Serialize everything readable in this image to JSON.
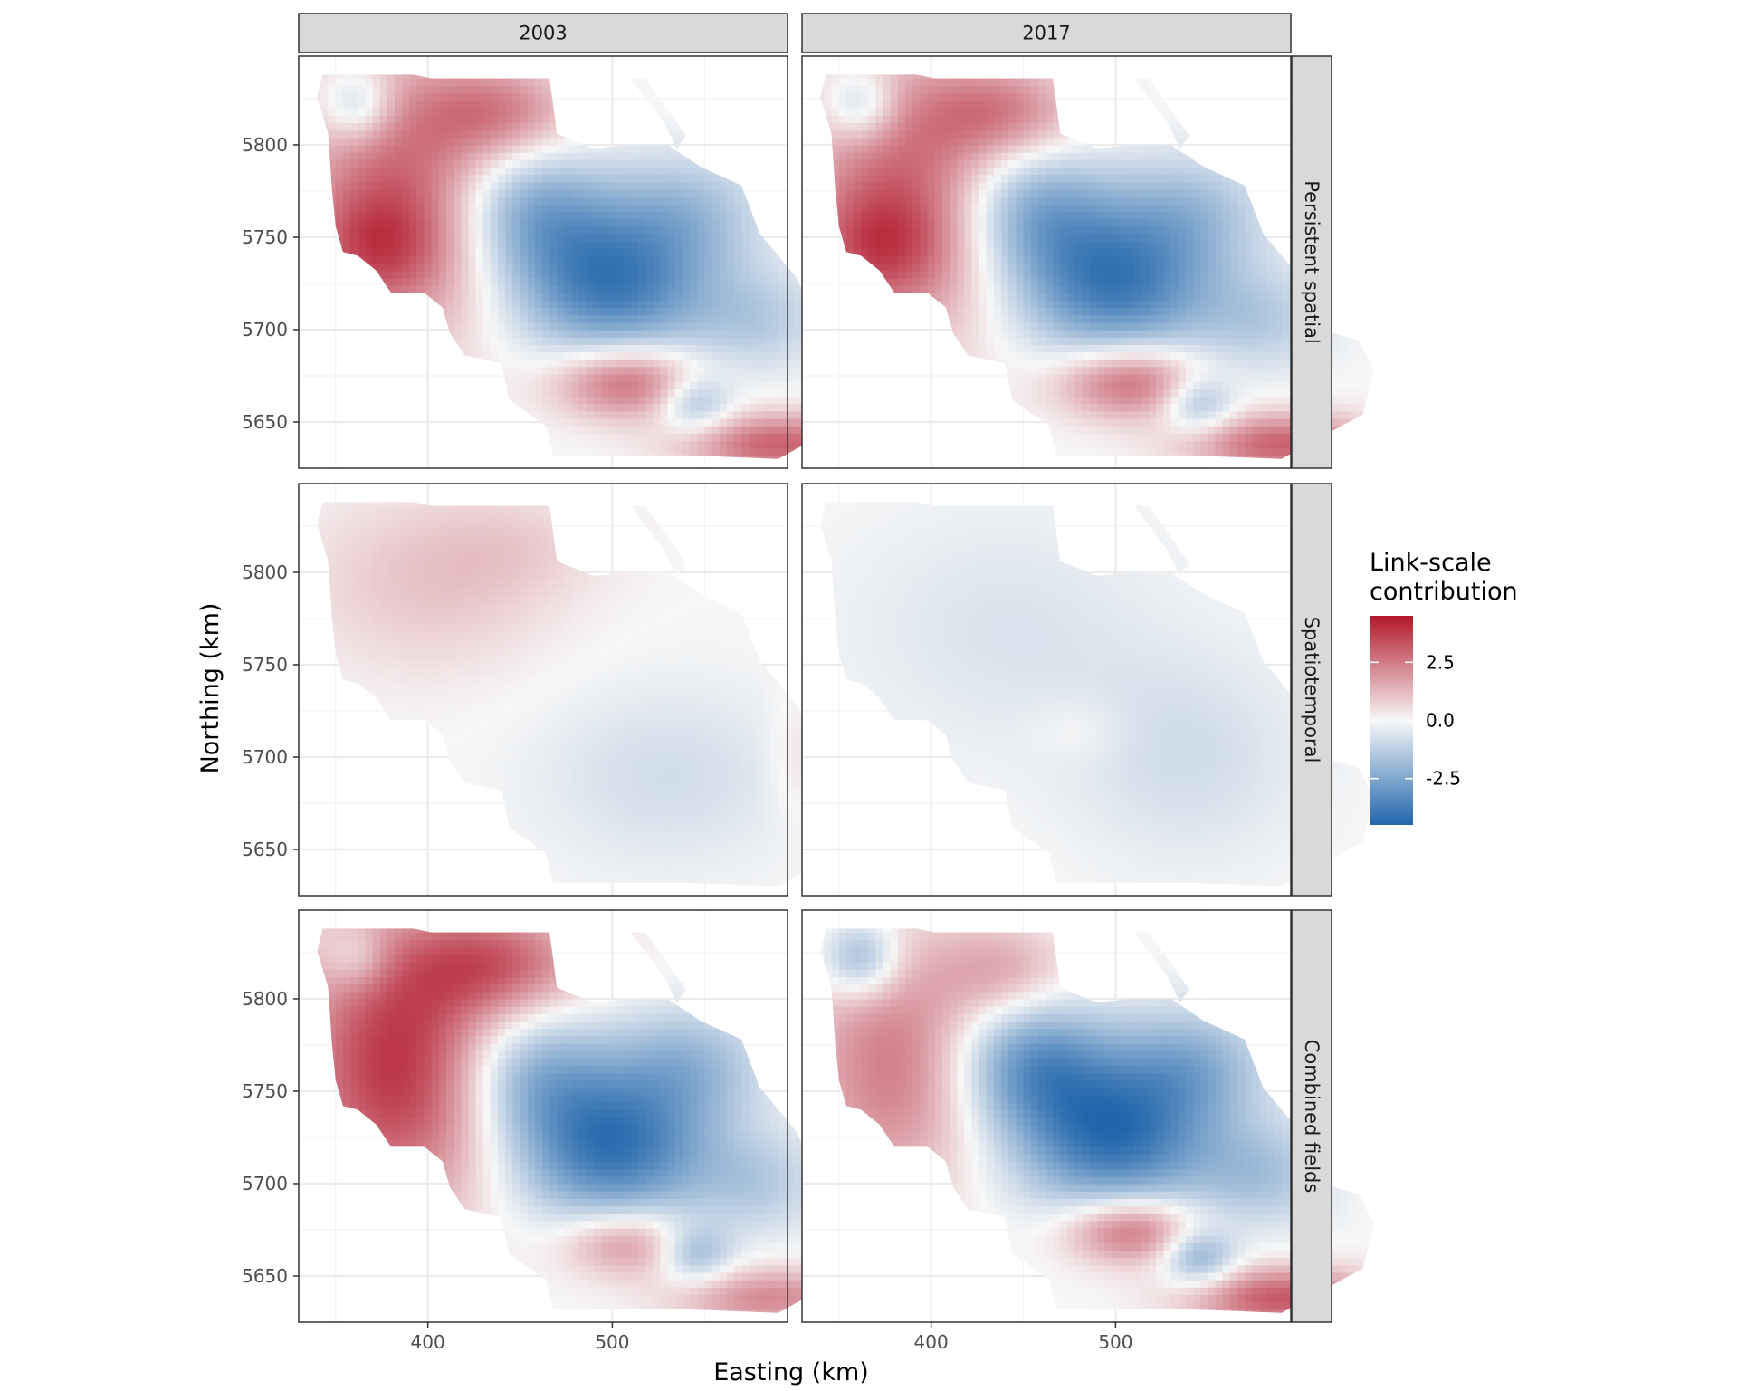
{
  "chart_data": {
    "type": "heatmap",
    "title": "",
    "xlabel": "Easting (km)",
    "ylabel": "Northing (km)",
    "x_ticks": [
      400,
      500
    ],
    "y_ticks": [
      5650,
      5700,
      5750,
      5800
    ],
    "x_ticks_text": [
      "400",
      "500"
    ],
    "y_ticks_text": [
      "5650",
      "5700",
      "5750",
      "5800"
    ],
    "xlim": [
      330,
      595
    ],
    "ylim": [
      5625,
      5848
    ],
    "columns": [
      "2003",
      "2017"
    ],
    "rows": [
      "Persistent spatial",
      "Spatiotemporal",
      "Combined fields"
    ],
    "grid": true,
    "legend": {
      "title_lines": [
        "Link-scale",
        "contribution"
      ],
      "position": "right",
      "range": [
        -4.5,
        4.5
      ],
      "ticks": [
        2.5,
        0.0,
        -2.5
      ],
      "ticks_text": [
        "2.5",
        "0.0",
        "-2.5"
      ],
      "colors": {
        "low": "#2166ac",
        "mid": "#f7f7f7",
        "high": "#b2182b"
      }
    },
    "domain_outline": [
      [
        343,
        5838
      ],
      [
        392,
        5838
      ],
      [
        402,
        5836
      ],
      [
        466,
        5836
      ],
      [
        470,
        5806
      ],
      [
        490,
        5798
      ],
      [
        508,
        5800
      ],
      [
        530,
        5800
      ],
      [
        548,
        5788
      ],
      [
        570,
        5778
      ],
      [
        580,
        5752
      ],
      [
        600,
        5728
      ],
      [
        612,
        5700
      ],
      [
        632,
        5694
      ],
      [
        640,
        5678
      ],
      [
        634,
        5654
      ],
      [
        608,
        5640
      ],
      [
        590,
        5630
      ],
      [
        540,
        5632
      ],
      [
        468,
        5632
      ],
      [
        464,
        5648
      ],
      [
        444,
        5662
      ],
      [
        440,
        5682
      ],
      [
        420,
        5686
      ],
      [
        412,
        5698
      ],
      [
        408,
        5712
      ],
      [
        398,
        5720
      ],
      [
        380,
        5720
      ],
      [
        372,
        5732
      ],
      [
        362,
        5740
      ],
      [
        354,
        5742
      ],
      [
        350,
        5756
      ],
      [
        348,
        5776
      ],
      [
        346,
        5806
      ],
      [
        340,
        5826
      ]
    ],
    "coastal_strip": [
      [
        510,
        5836
      ],
      [
        518,
        5836
      ],
      [
        540,
        5805
      ],
      [
        535,
        5798
      ],
      [
        528,
        5812
      ]
    ],
    "panels": [
      {
        "row": "Persistent spatial",
        "column": "2003",
        "features": [
          {
            "x": 385,
            "y": 5770,
            "value": 3.0,
            "sx": 40,
            "sy": 55
          },
          {
            "x": 370,
            "y": 5745,
            "value": 1.5,
            "sx": 25,
            "sy": 20
          },
          {
            "x": 440,
            "y": 5818,
            "value": 2.0,
            "sx": 30,
            "sy": 18
          },
          {
            "x": 362,
            "y": 5822,
            "value": -2.0,
            "sx": 14,
            "sy": 14
          },
          {
            "x": 455,
            "y": 5765,
            "value": -2.5,
            "sx": 30,
            "sy": 25
          },
          {
            "x": 500,
            "y": 5725,
            "value": -3.8,
            "sx": 38,
            "sy": 28
          },
          {
            "x": 540,
            "y": 5765,
            "value": -1.5,
            "sx": 30,
            "sy": 22
          },
          {
            "x": 580,
            "y": 5705,
            "value": -1.2,
            "sx": 25,
            "sy": 20
          },
          {
            "x": 508,
            "y": 5672,
            "value": 3.0,
            "sx": 28,
            "sy": 14
          },
          {
            "x": 545,
            "y": 5660,
            "value": -2.0,
            "sx": 14,
            "sy": 11
          },
          {
            "x": 590,
            "y": 5638,
            "value": 3.0,
            "sx": 35,
            "sy": 12
          }
        ]
      },
      {
        "row": "Persistent spatial",
        "column": "2017",
        "features": [
          {
            "x": 385,
            "y": 5770,
            "value": 3.0,
            "sx": 40,
            "sy": 55
          },
          {
            "x": 370,
            "y": 5745,
            "value": 1.5,
            "sx": 25,
            "sy": 20
          },
          {
            "x": 440,
            "y": 5818,
            "value": 2.0,
            "sx": 30,
            "sy": 18
          },
          {
            "x": 362,
            "y": 5822,
            "value": -2.0,
            "sx": 14,
            "sy": 14
          },
          {
            "x": 455,
            "y": 5765,
            "value": -2.5,
            "sx": 30,
            "sy": 25
          },
          {
            "x": 500,
            "y": 5725,
            "value": -3.8,
            "sx": 38,
            "sy": 28
          },
          {
            "x": 540,
            "y": 5765,
            "value": -1.5,
            "sx": 30,
            "sy": 22
          },
          {
            "x": 580,
            "y": 5705,
            "value": -1.2,
            "sx": 25,
            "sy": 20
          },
          {
            "x": 508,
            "y": 5672,
            "value": 3.0,
            "sx": 28,
            "sy": 14
          },
          {
            "x": 545,
            "y": 5660,
            "value": -2.0,
            "sx": 14,
            "sy": 11
          },
          {
            "x": 590,
            "y": 5638,
            "value": 3.0,
            "sx": 35,
            "sy": 12
          }
        ]
      },
      {
        "row": "Spatiotemporal",
        "column": "2003",
        "features": [
          {
            "x": 400,
            "y": 5795,
            "value": 1.0,
            "sx": 50,
            "sy": 35
          },
          {
            "x": 450,
            "y": 5815,
            "value": 0.5,
            "sx": 35,
            "sy": 20
          },
          {
            "x": 530,
            "y": 5690,
            "value": -0.8,
            "sx": 50,
            "sy": 35
          },
          {
            "x": 600,
            "y": 5700,
            "value": 0.6,
            "sx": 10,
            "sy": 22
          }
        ]
      },
      {
        "row": "Spatiotemporal",
        "column": "2017",
        "features": [
          {
            "x": 440,
            "y": 5770,
            "value": -0.6,
            "sx": 60,
            "sy": 45
          },
          {
            "x": 540,
            "y": 5700,
            "value": -0.8,
            "sx": 45,
            "sy": 40
          },
          {
            "x": 480,
            "y": 5715,
            "value": 0.4,
            "sx": 18,
            "sy": 12
          }
        ]
      },
      {
        "row": "Combined fields",
        "column": "2003",
        "features": [
          {
            "x": 385,
            "y": 5765,
            "value": 4.0,
            "sx": 40,
            "sy": 55
          },
          {
            "x": 440,
            "y": 5820,
            "value": 2.5,
            "sx": 35,
            "sy": 20
          },
          {
            "x": 362,
            "y": 5822,
            "value": -1.2,
            "sx": 12,
            "sy": 12
          },
          {
            "x": 455,
            "y": 5760,
            "value": -2.3,
            "sx": 30,
            "sy": 25
          },
          {
            "x": 500,
            "y": 5720,
            "value": -4.0,
            "sx": 38,
            "sy": 28
          },
          {
            "x": 540,
            "y": 5765,
            "value": -1.8,
            "sx": 30,
            "sy": 22
          },
          {
            "x": 580,
            "y": 5700,
            "value": -1.2,
            "sx": 25,
            "sy": 20
          },
          {
            "x": 508,
            "y": 5668,
            "value": 2.2,
            "sx": 25,
            "sy": 13
          },
          {
            "x": 545,
            "y": 5662,
            "value": -2.0,
            "sx": 14,
            "sy": 11
          },
          {
            "x": 585,
            "y": 5638,
            "value": 2.2,
            "sx": 35,
            "sy": 12
          }
        ]
      },
      {
        "row": "Combined fields",
        "column": "2017",
        "features": [
          {
            "x": 380,
            "y": 5765,
            "value": 2.5,
            "sx": 35,
            "sy": 50
          },
          {
            "x": 440,
            "y": 5815,
            "value": 1.5,
            "sx": 25,
            "sy": 18
          },
          {
            "x": 362,
            "y": 5822,
            "value": -2.5,
            "sx": 15,
            "sy": 15
          },
          {
            "x": 455,
            "y": 5765,
            "value": -3.0,
            "sx": 30,
            "sy": 25
          },
          {
            "x": 500,
            "y": 5725,
            "value": -4.0,
            "sx": 38,
            "sy": 28
          },
          {
            "x": 540,
            "y": 5765,
            "value": -2.0,
            "sx": 30,
            "sy": 22
          },
          {
            "x": 580,
            "y": 5705,
            "value": -1.5,
            "sx": 25,
            "sy": 20
          },
          {
            "x": 508,
            "y": 5675,
            "value": 3.0,
            "sx": 25,
            "sy": 13
          },
          {
            "x": 545,
            "y": 5660,
            "value": -2.3,
            "sx": 14,
            "sy": 11
          },
          {
            "x": 590,
            "y": 5638,
            "value": 3.2,
            "sx": 35,
            "sy": 12
          }
        ]
      }
    ]
  }
}
